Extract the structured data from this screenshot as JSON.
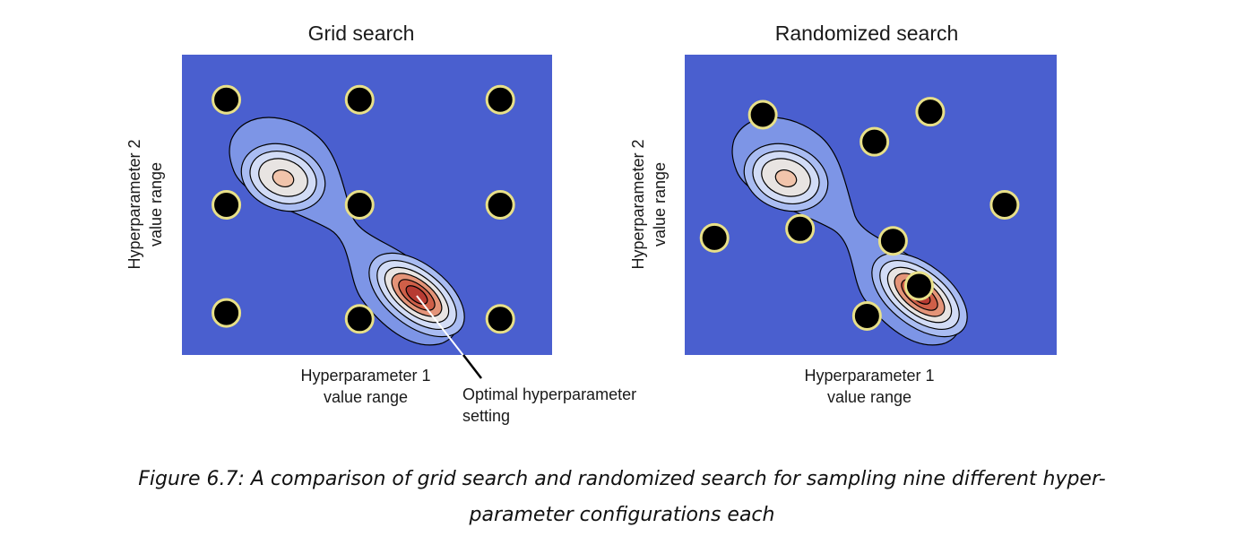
{
  "panels": [
    {
      "title": "Grid search",
      "x_label": "Hyperparameter 1\nvalue range",
      "y_label": "Hyperparameter 2\nvalue range",
      "sampling": "grid",
      "sample_points": [
        [
          0.12,
          0.85
        ],
        [
          0.48,
          0.85
        ],
        [
          0.86,
          0.85
        ],
        [
          0.12,
          0.5
        ],
        [
          0.48,
          0.5
        ],
        [
          0.86,
          0.5
        ],
        [
          0.12,
          0.14
        ],
        [
          0.48,
          0.12
        ],
        [
          0.86,
          0.12
        ]
      ]
    },
    {
      "title": "Randomized search",
      "x_label": "Hyperparameter 1\nvalue range",
      "y_label": "Hyperparameter 2\nvalue range",
      "sampling": "random",
      "sample_points": [
        [
          0.66,
          0.81
        ],
        [
          0.21,
          0.8
        ],
        [
          0.51,
          0.71
        ],
        [
          0.86,
          0.5
        ],
        [
          0.31,
          0.42
        ],
        [
          0.08,
          0.39
        ],
        [
          0.56,
          0.38
        ],
        [
          0.63,
          0.23
        ],
        [
          0.49,
          0.13
        ]
      ]
    }
  ],
  "callout": {
    "label": "Optimal hyperparameter\nsetting"
  },
  "caption": "Figure 6.7: A comparison of grid search and randomized search for sampling nine different hyper-\nparameter configurations each",
  "colors": {
    "background": "#4a5fcf",
    "contour_levels": [
      "#7d95e6",
      "#a9bcf2",
      "#d2dcf6",
      "#e8e4e2",
      "#f1c4ab",
      "#e49478",
      "#cf5f48",
      "#b73b33"
    ],
    "sample_point": "#000000",
    "sample_ring": "#e8e088"
  }
}
